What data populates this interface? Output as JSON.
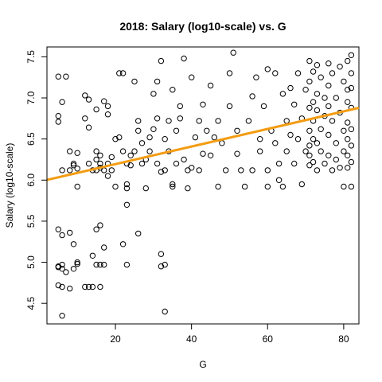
{
  "chart_data": {
    "type": "scatter",
    "title": "2018: Salary (log10-scale) vs. G",
    "xlabel": "G",
    "ylabel": "Salary (log10-scale)",
    "xlim": [
      2,
      84
    ],
    "ylim": [
      4.25,
      7.62
    ],
    "xticks": [
      20,
      40,
      60,
      80
    ],
    "yticks": [
      4.5,
      5.0,
      5.5,
      6.0,
      6.5,
      7.0,
      7.5
    ],
    "xtick_labels": [
      "20",
      "40",
      "60",
      "80"
    ],
    "ytick_labels": [
      "4.5",
      "5.0",
      "5.5",
      "6.0",
      "6.5",
      "7.0",
      "7.5"
    ],
    "grid": false,
    "legend": "none",
    "fit_line": {
      "color": "#f39c12",
      "intercept": 5.98,
      "slope": 0.0107
    },
    "series": [
      {
        "marker": "open-circle",
        "color": "#000000",
        "points": [
          [
            5,
            7.26
          ],
          [
            5,
            6.78
          ],
          [
            5,
            6.71
          ],
          [
            6,
            6.12
          ],
          [
            6,
            6.95
          ],
          [
            7,
            7.26
          ],
          [
            8,
            6.35
          ],
          [
            8,
            6.12
          ],
          [
            9,
            6.2
          ],
          [
            9,
            6.18
          ],
          [
            10,
            6.33
          ],
          [
            10,
            6.14
          ],
          [
            10,
            5.92
          ],
          [
            12,
            7.03
          ],
          [
            12,
            6.75
          ],
          [
            13,
            6.2
          ],
          [
            13,
            6.64
          ],
          [
            13,
            6.98
          ],
          [
            5,
            5.4
          ],
          [
            6,
            5.33
          ],
          [
            8,
            5.36
          ],
          [
            9,
            5.22
          ],
          [
            10,
            5.0
          ],
          [
            6,
            4.97
          ],
          [
            5,
            4.95
          ],
          [
            5,
            4.94
          ],
          [
            6,
            4.92
          ],
          [
            7,
            4.88
          ],
          [
            5,
            4.72
          ],
          [
            6,
            4.7
          ],
          [
            6,
            4.35
          ],
          [
            9,
            4.92
          ],
          [
            8,
            4.68
          ],
          [
            12,
            4.7
          ],
          [
            13,
            4.7
          ],
          [
            14,
            4.7
          ],
          [
            16,
            4.7
          ],
          [
            10,
            4.98
          ],
          [
            15,
            6.86
          ],
          [
            15,
            6.35
          ],
          [
            15,
            6.25
          ],
          [
            16,
            6.15
          ],
          [
            16,
            6.3
          ],
          [
            17,
            6.96
          ],
          [
            18,
            6.8
          ],
          [
            18,
            6.2
          ],
          [
            18,
            6.05
          ],
          [
            19,
            6.12
          ],
          [
            20,
            5.92
          ],
          [
            20,
            6.5
          ],
          [
            15,
            6.12
          ],
          [
            14,
            6.12
          ],
          [
            16,
            6.2
          ],
          [
            17,
            6.12
          ],
          [
            19,
            6.28
          ],
          [
            18,
            6.9
          ],
          [
            15,
            5.4
          ],
          [
            16,
            5.45
          ],
          [
            17,
            5.18
          ],
          [
            16,
            4.97
          ],
          [
            17,
            4.97
          ],
          [
            15,
            4.97
          ],
          [
            14,
            5.08
          ],
          [
            21,
            7.3
          ],
          [
            21,
            6.52
          ],
          [
            22,
            7.3
          ],
          [
            22,
            6.35
          ],
          [
            23,
            6.2
          ],
          [
            23,
            5.95
          ],
          [
            23,
            5.9
          ],
          [
            24,
            6.3
          ],
          [
            24,
            6.18
          ],
          [
            25,
            7.2
          ],
          [
            25,
            6.35
          ],
          [
            26,
            6.6
          ],
          [
            26,
            6.72
          ],
          [
            27,
            6.45
          ],
          [
            27,
            6.2
          ],
          [
            28,
            5.9
          ],
          [
            28,
            6.25
          ],
          [
            29,
            6.35
          ],
          [
            29,
            6.52
          ],
          [
            30,
            7.05
          ],
          [
            30,
            6.62
          ],
          [
            22,
            5.22
          ],
          [
            23,
            5.7
          ],
          [
            23,
            4.97
          ],
          [
            26,
            5.35
          ],
          [
            31,
            7.2
          ],
          [
            31,
            6.75
          ],
          [
            31,
            6.2
          ],
          [
            32,
            6.1
          ],
          [
            32,
            7.45
          ],
          [
            33,
            6.12
          ],
          [
            33,
            6.5
          ],
          [
            34,
            6.72
          ],
          [
            34,
            6.35
          ],
          [
            35,
            7.1
          ],
          [
            35,
            5.95
          ],
          [
            35,
            5.92
          ],
          [
            36,
            6.6
          ],
          [
            36,
            6.2
          ],
          [
            37,
            6.75
          ],
          [
            37,
            6.9
          ],
          [
            38,
            7.48
          ],
          [
            38,
            6.25
          ],
          [
            39,
            5.9
          ],
          [
            39,
            6.12
          ],
          [
            40,
            6.15
          ],
          [
            40,
            7.25
          ],
          [
            32,
            5.1
          ],
          [
            32,
            4.95
          ],
          [
            33,
            4.97
          ],
          [
            33,
            4.4
          ],
          [
            41,
            6.52
          ],
          [
            42,
            6.72
          ],
          [
            42,
            6.12
          ],
          [
            43,
            6.92
          ],
          [
            43,
            6.32
          ],
          [
            44,
            6.6
          ],
          [
            45,
            7.15
          ],
          [
            45,
            6.3
          ],
          [
            46,
            6.52
          ],
          [
            47,
            6.72
          ],
          [
            47,
            5.92
          ],
          [
            48,
            6.45
          ],
          [
            49,
            6.12
          ],
          [
            50,
            6.9
          ],
          [
            50,
            7.3
          ],
          [
            51,
            7.55
          ],
          [
            52,
            6.6
          ],
          [
            52,
            6.32
          ],
          [
            53,
            6.12
          ],
          [
            54,
            5.92
          ],
          [
            55,
            6.72
          ],
          [
            56,
            7.02
          ],
          [
            56,
            6.12
          ],
          [
            57,
            7.25
          ],
          [
            58,
            6.5
          ],
          [
            58,
            6.35
          ],
          [
            59,
            6.9
          ],
          [
            60,
            7.35
          ],
          [
            60,
            6.12
          ],
          [
            60,
            5.92
          ],
          [
            61,
            6.6
          ],
          [
            62,
            7.3
          ],
          [
            62,
            6.45
          ],
          [
            63,
            6.2
          ],
          [
            63,
            6.0
          ],
          [
            64,
            7.05
          ],
          [
            64,
            5.92
          ],
          [
            65,
            6.72
          ],
          [
            65,
            6.35
          ],
          [
            66,
            7.12
          ],
          [
            66,
            6.55
          ],
          [
            67,
            6.92
          ],
          [
            67,
            6.2
          ],
          [
            68,
            7.3
          ],
          [
            68,
            6.5
          ],
          [
            69,
            6.75
          ],
          [
            69,
            5.95
          ],
          [
            70,
            7.1
          ],
          [
            70,
            6.35
          ],
          [
            71,
            7.45
          ],
          [
            71,
            7.2
          ],
          [
            71,
            6.88
          ],
          [
            71,
            6.6
          ],
          [
            71,
            6.42
          ],
          [
            71,
            6.3
          ],
          [
            71,
            6.18
          ],
          [
            72,
            7.32
          ],
          [
            72,
            6.95
          ],
          [
            72,
            6.72
          ],
          [
            72,
            6.5
          ],
          [
            72,
            6.22
          ],
          [
            73,
            7.4
          ],
          [
            73,
            7.05
          ],
          [
            73,
            6.85
          ],
          [
            73,
            6.45
          ],
          [
            73,
            6.12
          ],
          [
            74,
            7.25
          ],
          [
            74,
            6.62
          ],
          [
            74,
            6.35
          ],
          [
            75,
            7.0
          ],
          [
            75,
            6.78
          ],
          [
            75,
            6.2
          ],
          [
            76,
            7.42
          ],
          [
            76,
            7.15
          ],
          [
            76,
            6.9
          ],
          [
            76,
            6.55
          ],
          [
            76,
            6.3
          ],
          [
            77,
            7.3
          ],
          [
            77,
            6.72
          ],
          [
            77,
            6.12
          ],
          [
            78,
            7.0
          ],
          [
            78,
            6.45
          ],
          [
            78,
            6.25
          ],
          [
            79,
            7.38
          ],
          [
            79,
            6.82
          ],
          [
            79,
            6.15
          ],
          [
            80,
            7.2
          ],
          [
            80,
            6.6
          ],
          [
            80,
            6.35
          ],
          [
            80,
            5.92
          ],
          [
            81,
            7.45
          ],
          [
            81,
            7.1
          ],
          [
            81,
            6.95
          ],
          [
            81,
            6.7
          ],
          [
            81,
            6.5
          ],
          [
            81,
            6.3
          ],
          [
            81,
            6.15
          ],
          [
            82,
            7.52
          ],
          [
            82,
            7.3
          ],
          [
            82,
            7.12
          ],
          [
            82,
            6.88
          ],
          [
            82,
            6.62
          ],
          [
            82,
            6.42
          ],
          [
            82,
            6.22
          ],
          [
            82,
            5.92
          ]
        ]
      }
    ]
  }
}
